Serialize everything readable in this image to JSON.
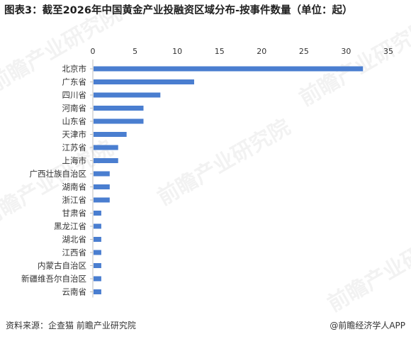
{
  "title": "图表3：截至2026年中国黄金产业投融资区域分布-按事件数量（单位：起）",
  "source": "资料来源：企查猫  前瞻产业研究院",
  "brand": "@前瞻经济学人APP",
  "watermark": "前瞻产业研究院",
  "colors": {
    "bar": "#4a7ed0",
    "axis": "#bfbfbf",
    "text": "#333333"
  },
  "chart_data": {
    "type": "bar",
    "orientation": "horizontal",
    "x_axis_position": "top",
    "xlim": [
      0,
      35
    ],
    "xticks": [
      0,
      5,
      10,
      15,
      20,
      25,
      30,
      35
    ],
    "categories": [
      "北京市",
      "广东省",
      "四川省",
      "河南省",
      "山东省",
      "天津市",
      "江苏省",
      "上海市",
      "广西壮族自治区",
      "湖南省",
      "浙江省",
      "甘肃省",
      "黑龙江省",
      "湖北省",
      "江西省",
      "内蒙古自治区",
      "新疆维吾尔自治区",
      "云南省"
    ],
    "values": [
      32,
      12,
      8,
      6,
      6,
      4,
      3,
      3,
      2,
      2,
      2,
      1,
      1,
      1,
      1,
      1,
      1,
      1
    ],
    "grid": false,
    "legend": "none"
  }
}
